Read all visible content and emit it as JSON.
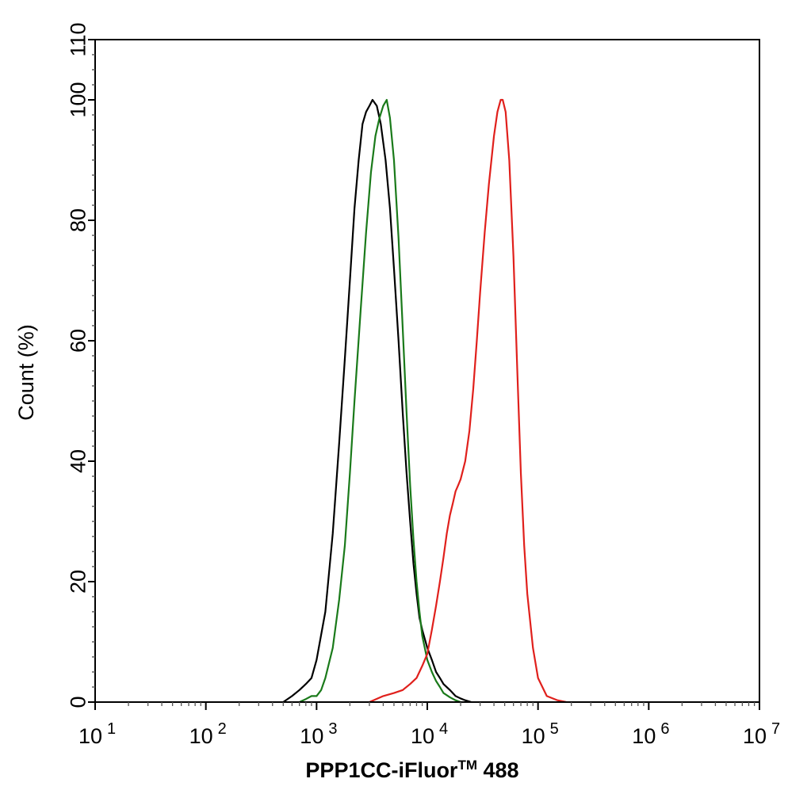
{
  "chart_data": {
    "type": "line",
    "xlabel": "PPP1CC-iFluor",
    "xlabel_tm": "TM",
    "xlabel_suffix": " 488",
    "ylabel": "Count  (%)",
    "x_scale": "log",
    "xlim": [
      10,
      10000000
    ],
    "ylim": [
      0,
      110
    ],
    "x_tick_labels": [
      {
        "base": "10",
        "exp": "1",
        "value": 10
      },
      {
        "base": "10",
        "exp": "2",
        "value": 100
      },
      {
        "base": "10",
        "exp": "3",
        "value": 1000
      },
      {
        "base": "10",
        "exp": "4",
        "value": 10000
      },
      {
        "base": "10",
        "exp": "5",
        "value": 100000
      },
      {
        "base": "10",
        "exp": "6",
        "value": 1000000
      },
      {
        "base": "10",
        "exp": "7",
        "value": 10000000
      }
    ],
    "y_ticks": [
      0,
      20,
      40,
      60,
      80,
      100,
      110
    ],
    "y_tick_labels": [
      "0",
      "20",
      "40",
      "60",
      "80",
      "100",
      "110"
    ],
    "grid": false,
    "legend": "none",
    "series": [
      {
        "color": "#000000",
        "x": [
          500,
          600,
          700,
          800,
          900,
          1000,
          1200,
          1400,
          1600,
          1800,
          2000,
          2200,
          2400,
          2600,
          2800,
          3000,
          3200,
          3500,
          3800,
          4200,
          4600,
          5000,
          5500,
          6000,
          6500,
          7000,
          7500,
          8000,
          8500,
          9000,
          10000,
          11000,
          12000,
          13000,
          14000,
          16000,
          18000,
          20000,
          22000,
          25000
        ],
        "y": [
          0,
          1,
          2,
          3,
          4,
          7,
          15,
          28,
          43,
          57,
          70,
          82,
          90,
          96,
          98,
          99,
          100,
          99,
          96,
          90,
          82,
          72,
          60,
          48,
          38,
          30,
          23,
          18,
          14,
          12,
          9,
          7,
          5,
          4,
          3,
          2,
          1,
          0.6,
          0.3,
          0
        ]
      },
      {
        "color": "#1a7a1a",
        "x": [
          700,
          800,
          900,
          1000,
          1100,
          1200,
          1400,
          1600,
          1800,
          2000,
          2200,
          2500,
          2800,
          3100,
          3400,
          3700,
          4000,
          4300,
          4600,
          5000,
          5500,
          6000,
          6500,
          7000,
          7500,
          8000,
          8500,
          9000,
          10000,
          11000,
          12000,
          13000,
          14000,
          16000,
          18000,
          20000
        ],
        "y": [
          0,
          0.5,
          1,
          1,
          2,
          4,
          9,
          17,
          26,
          38,
          50,
          65,
          78,
          88,
          94,
          97,
          99,
          100,
          97,
          90,
          77,
          62,
          48,
          36,
          27,
          20,
          15,
          11,
          7,
          5,
          3.5,
          2.5,
          1.5,
          0.8,
          0.3,
          0
        ]
      },
      {
        "color": "#e0201c",
        "x": [
          3000,
          4000,
          5000,
          6000,
          7000,
          8000,
          9000,
          10000,
          11000,
          12000,
          13000,
          14000,
          15000,
          16000,
          17000,
          18000,
          19000,
          20000,
          22000,
          24000,
          26000,
          28000,
          30000,
          33000,
          36000,
          40000,
          43000,
          46000,
          48000,
          51000,
          55000,
          60000,
          65000,
          70000,
          75000,
          80000,
          90000,
          100000,
          120000,
          150000,
          180000
        ],
        "y": [
          0,
          1,
          1.5,
          2,
          3,
          4,
          6,
          8,
          12,
          16,
          20,
          24,
          28,
          31,
          33,
          35,
          36,
          37,
          40,
          45,
          52,
          60,
          68,
          78,
          86,
          94,
          98,
          100,
          100,
          98,
          90,
          74,
          55,
          38,
          26,
          18,
          9,
          4,
          1,
          0.3,
          0
        ]
      }
    ]
  }
}
